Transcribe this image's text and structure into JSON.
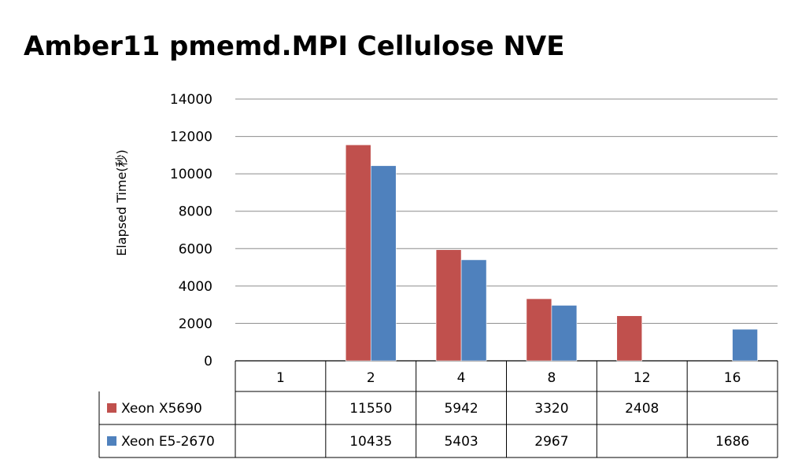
{
  "chart_data": {
    "type": "bar",
    "title": "Amber11 pmemd.MPI Cellulose NVE",
    "ylabel": "Elapsed Time(秒)",
    "xlabel": "",
    "categories": [
      "1",
      "2",
      "4",
      "8",
      "12",
      "16"
    ],
    "ylim": [
      0,
      14000
    ],
    "yticks": [
      0,
      2000,
      4000,
      6000,
      8000,
      10000,
      12000,
      14000
    ],
    "grid": true,
    "legend": "data-table",
    "series": [
      {
        "name": "Xeon X5690",
        "color": "#c0504d",
        "values": [
          null,
          11550,
          5942,
          3320,
          2408,
          null
        ]
      },
      {
        "name": "Xeon E5-2670",
        "color": "#4f81bd",
        "values": [
          null,
          10435,
          5403,
          2967,
          null,
          1686
        ]
      }
    ]
  }
}
